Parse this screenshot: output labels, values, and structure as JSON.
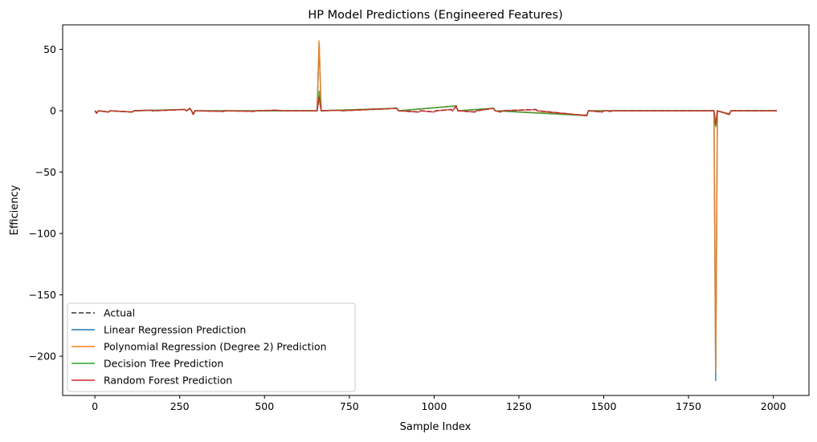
{
  "chart_data": {
    "type": "line",
    "title": "HP Model Predictions (Engineered Features)",
    "xlabel": "Sample Index",
    "ylabel": "Efficiency",
    "xlim": [
      -95,
      2105
    ],
    "ylim": [
      -232,
      70
    ],
    "xticks": [
      0,
      250,
      500,
      750,
      1000,
      1250,
      1500,
      1750,
      2000
    ],
    "yticks": [
      -200,
      -150,
      -100,
      -50,
      0,
      50
    ],
    "yticklabels": [
      "−200",
      "−150",
      "−100",
      "−50",
      "0",
      "50"
    ],
    "grid": false,
    "legend_position": "lower-left",
    "series": [
      {
        "name": "Actual",
        "color": "#333333",
        "dashed": true,
        "points": [
          [
            0,
            0
          ],
          [
            5,
            -2
          ],
          [
            10,
            0
          ],
          [
            40,
            -1
          ],
          [
            45,
            0
          ],
          [
            110,
            -1
          ],
          [
            115,
            0
          ],
          [
            165,
            0.5
          ],
          [
            170,
            0
          ],
          [
            265,
            1
          ],
          [
            270,
            0
          ],
          [
            280,
            2
          ],
          [
            285,
            0
          ],
          [
            290,
            -3
          ],
          [
            295,
            0
          ],
          [
            380,
            -0.5
          ],
          [
            385,
            0
          ],
          [
            470,
            -0.5
          ],
          [
            475,
            0
          ],
          [
            540,
            0.5
          ],
          [
            545,
            0
          ],
          [
            655,
            0
          ],
          [
            661,
            11
          ],
          [
            667,
            0
          ],
          [
            720,
            0.5
          ],
          [
            725,
            0
          ],
          [
            890,
            2
          ],
          [
            895,
            0
          ],
          [
            955,
            -1
          ],
          [
            960,
            0
          ],
          [
            1000,
            -1
          ],
          [
            1005,
            0
          ],
          [
            1050,
            1
          ],
          [
            1055,
            0
          ],
          [
            1065,
            4
          ],
          [
            1070,
            0
          ],
          [
            1120,
            -1
          ],
          [
            1125,
            0
          ],
          [
            1175,
            2
          ],
          [
            1180,
            0
          ],
          [
            1195,
            -1
          ],
          [
            1200,
            0
          ],
          [
            1300,
            1
          ],
          [
            1305,
            0
          ],
          [
            1450,
            -4
          ],
          [
            1455,
            0
          ],
          [
            1495,
            -1
          ],
          [
            1500,
            0
          ],
          [
            1520,
            -0.5
          ],
          [
            1525,
            0
          ],
          [
            1825,
            0
          ],
          [
            1830,
            -12
          ],
          [
            1835,
            0
          ],
          [
            1870,
            -3
          ],
          [
            1875,
            0
          ],
          [
            2010,
            0
          ]
        ]
      },
      {
        "name": "Linear Regression Prediction",
        "color": "#1f77b4",
        "dashed": false,
        "points": [
          [
            0,
            0
          ],
          [
            5,
            -1.5
          ],
          [
            10,
            0
          ],
          [
            40,
            -1
          ],
          [
            45,
            0
          ],
          [
            110,
            -1
          ],
          [
            115,
            0
          ],
          [
            265,
            1
          ],
          [
            270,
            0
          ],
          [
            280,
            2
          ],
          [
            285,
            0
          ],
          [
            290,
            -3
          ],
          [
            295,
            0
          ],
          [
            655,
            0
          ],
          [
            661,
            55
          ],
          [
            667,
            0
          ],
          [
            890,
            2
          ],
          [
            895,
            0
          ],
          [
            1065,
            4
          ],
          [
            1070,
            0
          ],
          [
            1175,
            2
          ],
          [
            1180,
            0
          ],
          [
            1450,
            -3.5
          ],
          [
            1455,
            0
          ],
          [
            1825,
            0
          ],
          [
            1830,
            -220
          ],
          [
            1835,
            0
          ],
          [
            1870,
            -2.5
          ],
          [
            1875,
            0
          ],
          [
            2010,
            0
          ]
        ]
      },
      {
        "name": "Polynomial Regression (Degree 2) Prediction",
        "color": "#ff7f0e",
        "dashed": false,
        "points": [
          [
            0,
            0
          ],
          [
            5,
            -1.5
          ],
          [
            10,
            0
          ],
          [
            40,
            -1
          ],
          [
            45,
            0
          ],
          [
            110,
            -1
          ],
          [
            115,
            0
          ],
          [
            265,
            1
          ],
          [
            270,
            0
          ],
          [
            280,
            2
          ],
          [
            285,
            0
          ],
          [
            290,
            -3
          ],
          [
            295,
            0
          ],
          [
            655,
            0
          ],
          [
            661,
            57
          ],
          [
            667,
            0
          ],
          [
            890,
            2
          ],
          [
            895,
            0
          ],
          [
            1065,
            4
          ],
          [
            1070,
            0
          ],
          [
            1175,
            2
          ],
          [
            1180,
            0
          ],
          [
            1450,
            -3.5
          ],
          [
            1455,
            0
          ],
          [
            1825,
            0
          ],
          [
            1830,
            -213
          ],
          [
            1835,
            0
          ],
          [
            1870,
            -2.5
          ],
          [
            1875,
            0
          ],
          [
            2010,
            0
          ]
        ]
      },
      {
        "name": "Decision Tree Prediction",
        "color": "#2ca02c",
        "dashed": false,
        "points": [
          [
            0,
            0
          ],
          [
            5,
            -2
          ],
          [
            10,
            0
          ],
          [
            40,
            -1
          ],
          [
            45,
            0
          ],
          [
            110,
            -1
          ],
          [
            115,
            0
          ],
          [
            265,
            1
          ],
          [
            270,
            0
          ],
          [
            280,
            2
          ],
          [
            285,
            0
          ],
          [
            290,
            -3
          ],
          [
            295,
            0
          ],
          [
            655,
            0
          ],
          [
            661,
            16
          ],
          [
            667,
            0
          ],
          [
            890,
            2
          ],
          [
            895,
            0
          ],
          [
            1065,
            4
          ],
          [
            1070,
            0
          ],
          [
            1175,
            2
          ],
          [
            1180,
            0
          ],
          [
            1450,
            -4
          ],
          [
            1455,
            0
          ],
          [
            1825,
            0
          ],
          [
            1830,
            -13
          ],
          [
            1835,
            0
          ],
          [
            1870,
            -3
          ],
          [
            1875,
            0
          ],
          [
            2010,
            0
          ]
        ]
      },
      {
        "name": "Random Forest Prediction",
        "color": "#d62728",
        "dashed": false,
        "points": [
          [
            0,
            0
          ],
          [
            5,
            -2
          ],
          [
            10,
            0
          ],
          [
            40,
            -1
          ],
          [
            45,
            0
          ],
          [
            110,
            -1
          ],
          [
            115,
            0
          ],
          [
            165,
            0.5
          ],
          [
            170,
            0
          ],
          [
            265,
            1
          ],
          [
            270,
            0
          ],
          [
            280,
            2
          ],
          [
            285,
            0
          ],
          [
            290,
            -3
          ],
          [
            295,
            0
          ],
          [
            380,
            -0.5
          ],
          [
            385,
            0
          ],
          [
            470,
            -0.5
          ],
          [
            475,
            0
          ],
          [
            540,
            0.5
          ],
          [
            545,
            0
          ],
          [
            655,
            0
          ],
          [
            661,
            11
          ],
          [
            667,
            0
          ],
          [
            720,
            0.5
          ],
          [
            725,
            0
          ],
          [
            890,
            2
          ],
          [
            895,
            0
          ],
          [
            955,
            -1
          ],
          [
            960,
            0
          ],
          [
            1000,
            -1
          ],
          [
            1005,
            0
          ],
          [
            1050,
            1
          ],
          [
            1055,
            0
          ],
          [
            1065,
            4
          ],
          [
            1070,
            0
          ],
          [
            1120,
            -1
          ],
          [
            1125,
            0
          ],
          [
            1175,
            2
          ],
          [
            1180,
            0
          ],
          [
            1195,
            -1
          ],
          [
            1200,
            0
          ],
          [
            1300,
            1
          ],
          [
            1305,
            0
          ],
          [
            1450,
            -4
          ],
          [
            1455,
            0
          ],
          [
            1495,
            -1
          ],
          [
            1500,
            0
          ],
          [
            1825,
            0
          ],
          [
            1830,
            -11
          ],
          [
            1835,
            0
          ],
          [
            1870,
            -3
          ],
          [
            1875,
            0
          ],
          [
            2010,
            0
          ]
        ]
      }
    ]
  }
}
